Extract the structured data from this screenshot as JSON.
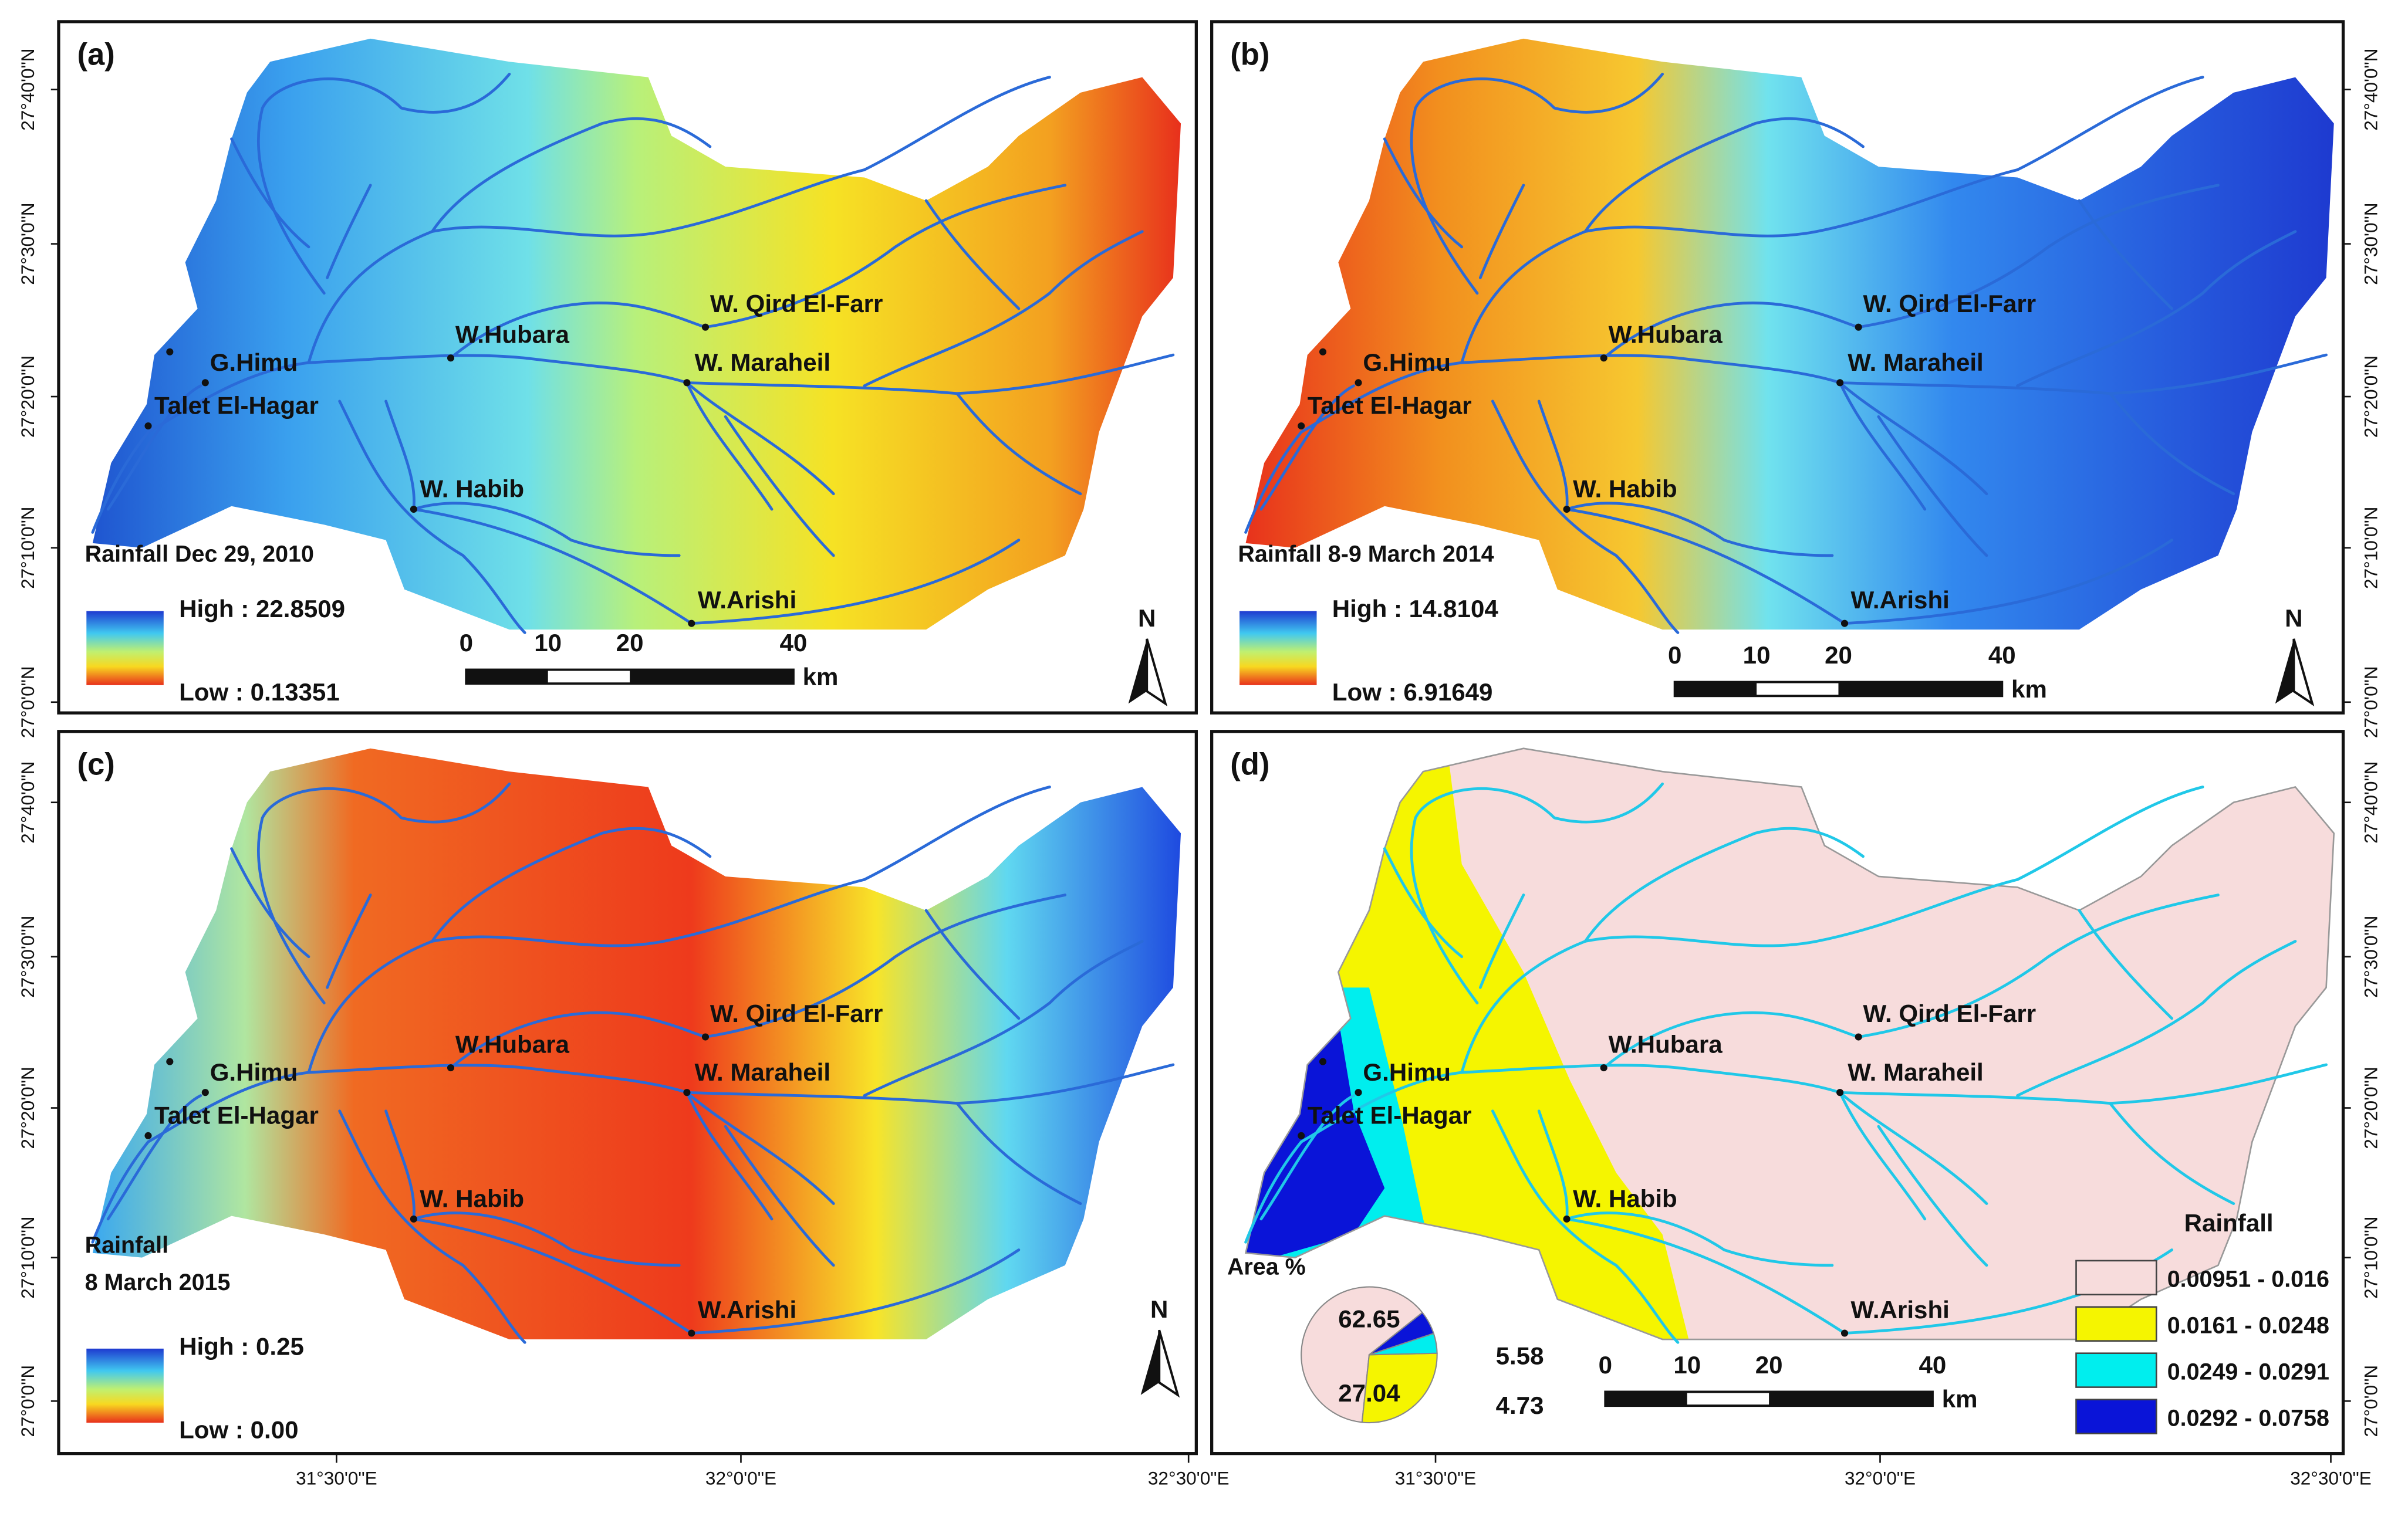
{
  "panels": [
    {
      "label": "(a)",
      "title_lines": [
        "Rainfall Dec 29, 2010"
      ],
      "legend_high": "High : 22.8509",
      "legend_low": "Low : 0.13351"
    },
    {
      "label": "(b)",
      "title_lines": [
        "Rainfall 8-9 March 2014"
      ],
      "legend_high": "High : 14.8104",
      "legend_low": "Low : 6.91649"
    },
    {
      "label": "(c)",
      "title_lines": [
        "Rainfall",
        "8 March 2015"
      ],
      "legend_high": "High : 0.25",
      "legend_low": "Low : 0.00"
    },
    {
      "label": "(d)"
    }
  ],
  "places": [
    "W. Qird El-Farr",
    "W.Hubara",
    "G.Himu",
    "W. Maraheil",
    "Talet El-Hagar",
    "W. Habib",
    "W.Arishi"
  ],
  "scale_bar": {
    "ticks": [
      0,
      10,
      20,
      40
    ],
    "unit": "km"
  },
  "north": "N",
  "lat_labels": [
    "27°40'0\"N",
    "27°30'0\"N",
    "27°20'0\"N",
    "27°10'0\"N",
    "27°0'0\"N"
  ],
  "lon_labels": [
    "31°30'0\"E",
    "32°0'0\"E",
    "32°30'0\"E"
  ],
  "classified": {
    "legend_title": "Rainfall",
    "classes": [
      {
        "label": "0.00951 - 0.016",
        "color": "#f7dcdc"
      },
      {
        "label": "0.0161 - 0.0248",
        "color": "#f5f500"
      },
      {
        "label": "0.0249 - 0.0291",
        "color": "#00eeee"
      },
      {
        "label": "0.0292 - 0.0758",
        "color": "#0a14d8"
      }
    ],
    "pie": {
      "title": "Area %",
      "values": [
        62.65,
        27.04,
        4.73,
        5.58
      ]
    }
  }
}
